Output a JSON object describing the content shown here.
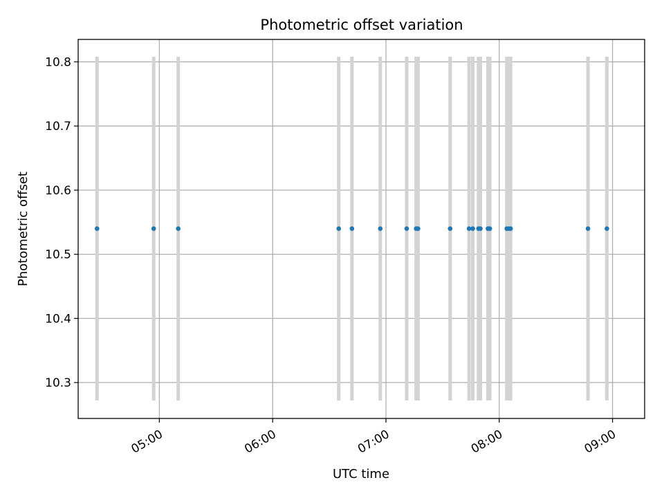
{
  "chart_data": {
    "type": "scatter",
    "title": "Photometric offset variation",
    "xlabel": "UTC time",
    "ylabel": "Photometric offset",
    "x_axis_kind": "time",
    "x_ticks": [
      "05:00",
      "06:00",
      "07:00",
      "08:00",
      "09:00"
    ],
    "y_ticks": [
      "10.3",
      "10.4",
      "10.5",
      "10.6",
      "10.7",
      "10.8"
    ],
    "xlim": [
      "04:17",
      "09:17"
    ],
    "ylim": [
      10.244,
      10.835
    ],
    "grid": true,
    "error_bar_range": [
      10.272,
      10.808
    ],
    "colors": {
      "points": "#1f77b4",
      "error_bars": "#d3d3d3",
      "grid": "#b0b0b0"
    },
    "series": [
      {
        "x": [
          "04:27",
          "04:57",
          "05:10",
          "06:35",
          "06:42",
          "06:57",
          "07:11",
          "07:16",
          "07:17",
          "07:34",
          "07:44",
          "07:46",
          "07:49",
          "07:50",
          "07:54",
          "07:55",
          "08:04",
          "08:05",
          "08:06",
          "08:47",
          "08:57"
        ],
        "y": [
          10.54,
          10.54,
          10.54,
          10.54,
          10.54,
          10.54,
          10.54,
          10.54,
          10.54,
          10.54,
          10.54,
          10.54,
          10.54,
          10.54,
          10.54,
          10.54,
          10.54,
          10.54,
          10.54,
          10.54,
          10.54
        ]
      }
    ]
  }
}
